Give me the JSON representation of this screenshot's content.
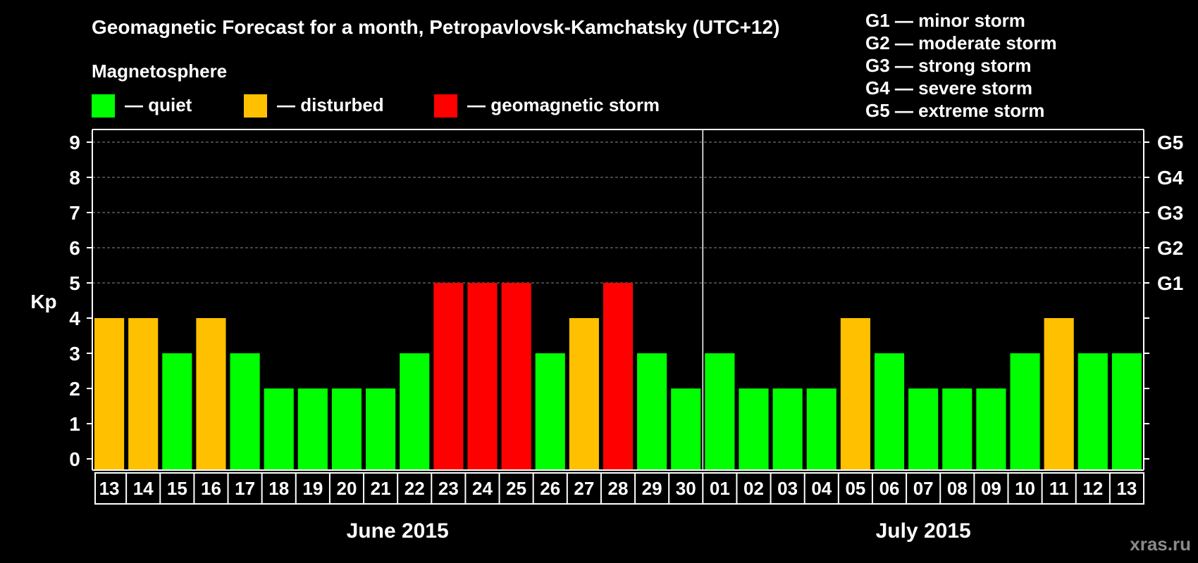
{
  "chart_data": {
    "type": "bar",
    "title": "Geomagnetic Forecast for a month, Petropavlovsk-Kamchatsky (UTC+12)",
    "legend_title": "Magnetosphere",
    "legend": [
      {
        "key": "quiet",
        "label": "— quiet",
        "color": "#00ff00"
      },
      {
        "key": "disturbed",
        "label": "— disturbed",
        "color": "#ffc000"
      },
      {
        "key": "storm",
        "label": "— geomagnetic storm",
        "color": "#ff0000"
      }
    ],
    "g_scale_legend": [
      "G1 — minor storm",
      "G2 — moderate storm",
      "G3 — strong storm",
      "G4 — severe storm",
      "G5 — extreme storm"
    ],
    "ylabel": "Kp",
    "ylim": [
      0,
      9
    ],
    "yticks": [
      "0",
      "1",
      "2",
      "3",
      "4",
      "5",
      "6",
      "7",
      "8",
      "9"
    ],
    "right_ticks": [
      {
        "kp": 5,
        "label": "G1"
      },
      {
        "kp": 6,
        "label": "G2"
      },
      {
        "kp": 7,
        "label": "G3"
      },
      {
        "kp": 8,
        "label": "G4"
      },
      {
        "kp": 9,
        "label": "G5"
      }
    ],
    "categories": [
      "13",
      "14",
      "15",
      "16",
      "17",
      "18",
      "19",
      "20",
      "21",
      "22",
      "23",
      "24",
      "25",
      "26",
      "27",
      "28",
      "29",
      "30",
      "01",
      "02",
      "03",
      "04",
      "05",
      "06",
      "07",
      "08",
      "09",
      "10",
      "11",
      "12",
      "13"
    ],
    "values": [
      4,
      4,
      3,
      4,
      3,
      2,
      2,
      2,
      2,
      3,
      5,
      5,
      5,
      3,
      4,
      5,
      3,
      2,
      3,
      2,
      2,
      2,
      4,
      3,
      2,
      2,
      2,
      3,
      4,
      3,
      3
    ],
    "months": [
      {
        "label": "June 2015",
        "start": 0,
        "count": 18
      },
      {
        "label": "July 2015",
        "start": 18,
        "count": 13
      }
    ],
    "grid": true
  },
  "watermark": "xras.ru"
}
